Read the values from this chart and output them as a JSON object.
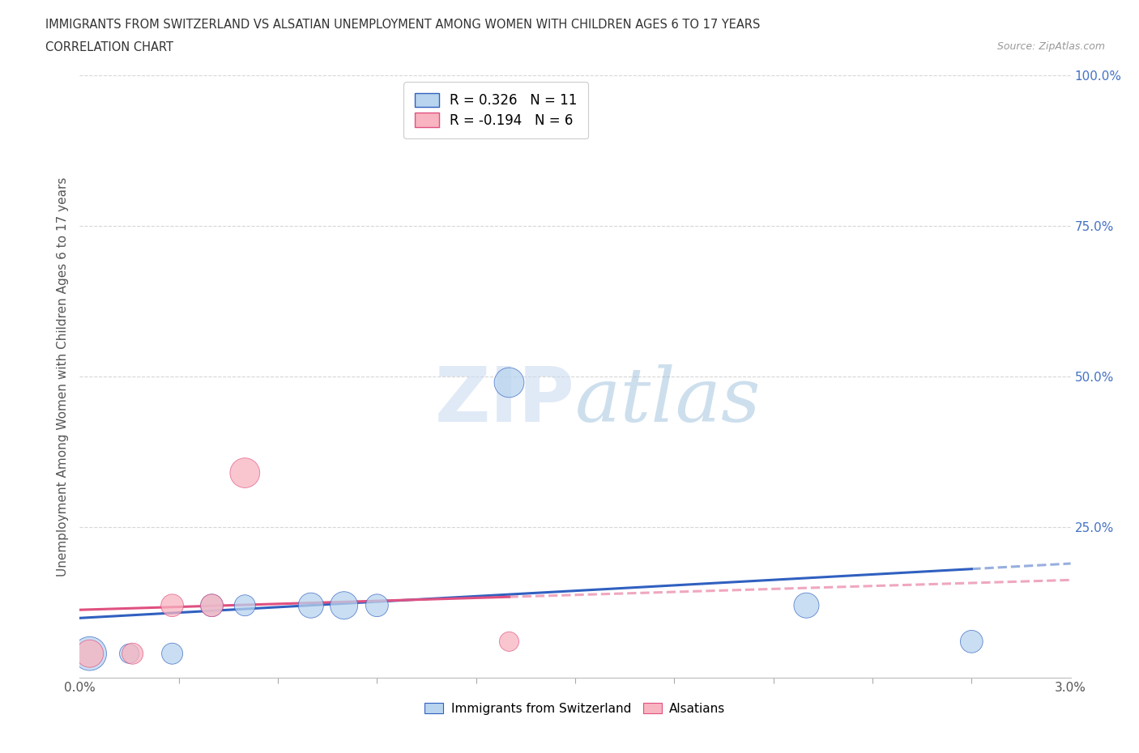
{
  "title_line1": "IMMIGRANTS FROM SWITZERLAND VS ALSATIAN UNEMPLOYMENT AMONG WOMEN WITH CHILDREN AGES 6 TO 17 YEARS",
  "title_line2": "CORRELATION CHART",
  "source_text": "Source: ZipAtlas.com",
  "ylabel": "Unemployment Among Women with Children Ages 6 to 17 years",
  "xlim": [
    0.0,
    0.03
  ],
  "ylim": [
    0.0,
    1.0
  ],
  "ytick_values": [
    0.25,
    0.5,
    0.75,
    1.0
  ],
  "swiss_x": [
    0.0003,
    0.0015,
    0.0028,
    0.004,
    0.005,
    0.007,
    0.008,
    0.009,
    0.013,
    0.022,
    0.027
  ],
  "swiss_y": [
    0.04,
    0.04,
    0.04,
    0.12,
    0.12,
    0.12,
    0.12,
    0.12,
    0.49,
    0.12,
    0.06
  ],
  "swiss_size": [
    900,
    300,
    350,
    400,
    350,
    500,
    600,
    400,
    700,
    500,
    400
  ],
  "alsatian_x": [
    0.0003,
    0.0016,
    0.0028,
    0.004,
    0.005,
    0.013
  ],
  "alsatian_y": [
    0.04,
    0.04,
    0.12,
    0.12,
    0.34,
    0.06
  ],
  "alsatian_size": [
    600,
    350,
    400,
    400,
    700,
    300
  ],
  "swiss_color": "#b8d4ee",
  "alsatian_color": "#f8b4c0",
  "swiss_line_color": "#3060c0",
  "alsatian_line_color": "#e05080",
  "R_swiss": 0.326,
  "N_swiss": 11,
  "R_alsatian": -0.194,
  "N_alsatian": 6,
  "watermark_zip": "ZIP",
  "watermark_atlas": "atlas",
  "background_color": "#ffffff",
  "grid_color": "#cccccc"
}
